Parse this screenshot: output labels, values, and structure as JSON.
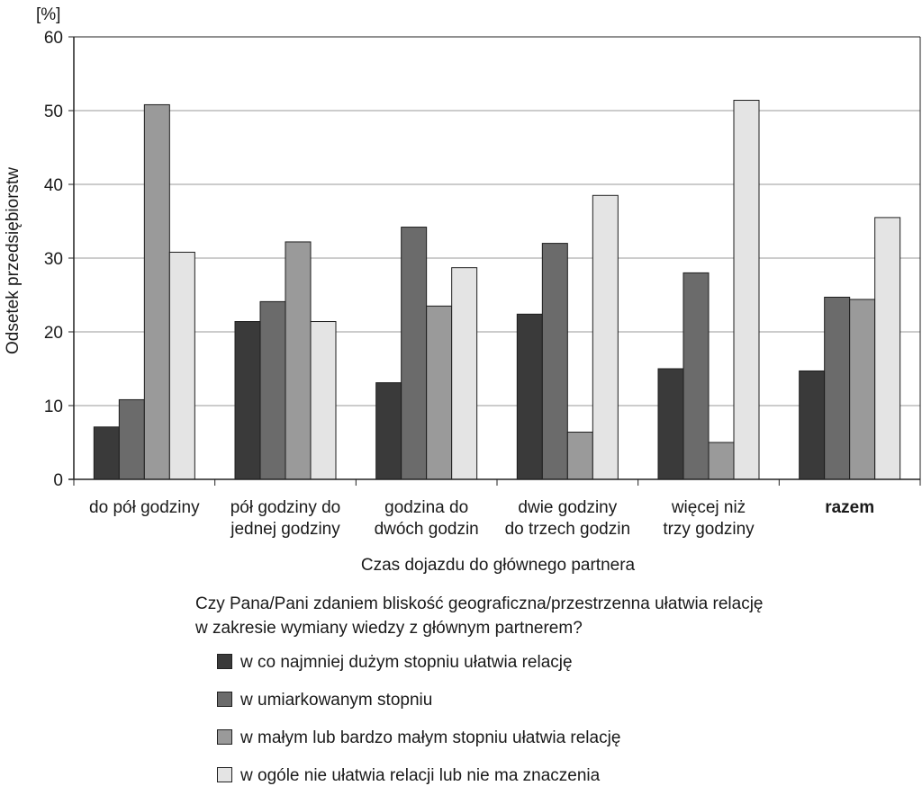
{
  "chart_data": {
    "type": "bar",
    "title": "",
    "ylabel": "Odsetek przedsiębiorstw",
    "yunit": "[%]",
    "xlabel": "Czas dojazdu do głównego partnera",
    "ylim": [
      0,
      60
    ],
    "yticks": [
      "0",
      "10",
      "20",
      "30",
      "40",
      "50",
      "60"
    ],
    "grid": true,
    "categories": [
      {
        "lines": [
          "do pół godziny"
        ],
        "bold": false
      },
      {
        "lines": [
          "pół godziny do",
          "jednej godziny"
        ],
        "bold": false
      },
      {
        "lines": [
          "godzina do",
          "dwóch godzin"
        ],
        "bold": false
      },
      {
        "lines": [
          "dwie godziny",
          "do trzech godzin"
        ],
        "bold": false
      },
      {
        "lines": [
          "więcej niż",
          "trzy godziny"
        ],
        "bold": false
      },
      {
        "lines": [
          "razem"
        ],
        "bold": true
      }
    ],
    "legend_title_lines": [
      "Czy Pana/Pani zdaniem bliskość geograficzna/przestrzenna ułatwia relację",
      "w zakresie wymiany wiedzy z głównym partnerem?"
    ],
    "series": [
      {
        "name": "w co najmniej dużym stopniu ułatwia relację",
        "color": "#3a3a3a",
        "values": [
          7.1,
          21.4,
          13.1,
          22.4,
          15.0,
          14.7
        ]
      },
      {
        "name": "w umiarkowanym stopniu",
        "color": "#6b6b6b",
        "values": [
          10.8,
          24.1,
          34.2,
          32.0,
          28.0,
          24.7
        ]
      },
      {
        "name": "w małym lub bardzo małym stopniu ułatwia relację",
        "color": "#9a9a9a",
        "values": [
          50.8,
          32.2,
          23.5,
          6.4,
          5.0,
          24.4
        ]
      },
      {
        "name": "w ogóle nie ułatwia relacji lub nie ma znaczenia",
        "color": "#e4e4e4",
        "values": [
          30.8,
          21.4,
          28.7,
          38.5,
          51.4,
          35.5
        ]
      }
    ]
  }
}
